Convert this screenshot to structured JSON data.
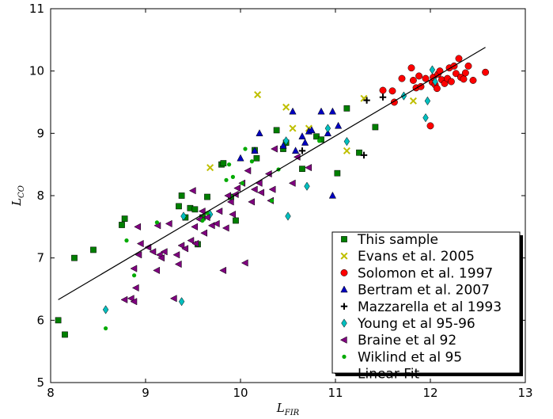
{
  "chart_data": {
    "type": "scatter",
    "xlabel": {
      "main": "L",
      "sub": "FIR"
    },
    "ylabel": {
      "main": "L",
      "sub": "CO"
    },
    "xlim": [
      8,
      13
    ],
    "ylim": [
      5,
      11
    ],
    "xticks": [
      8,
      9,
      10,
      11,
      12,
      13
    ],
    "yticks": [
      5,
      6,
      7,
      8,
      9,
      10,
      11
    ],
    "grid": false,
    "legend_position": "bottom-right",
    "series": [
      {
        "name": "This sample",
        "marker": "square",
        "color": "#007f00",
        "points": [
          [
            8.08,
            6.0
          ],
          [
            8.15,
            5.77
          ],
          [
            8.25,
            7.0
          ],
          [
            8.45,
            7.13
          ],
          [
            8.75,
            7.53
          ],
          [
            8.78,
            7.63
          ],
          [
            9.35,
            7.83
          ],
          [
            9.38,
            8.0
          ],
          [
            9.42,
            7.65
          ],
          [
            9.47,
            7.8
          ],
          [
            9.52,
            7.78
          ],
          [
            9.55,
            7.22
          ],
          [
            9.6,
            7.65
          ],
          [
            9.65,
            7.98
          ],
          [
            9.8,
            8.5
          ],
          [
            9.82,
            8.52
          ],
          [
            9.9,
            7.98
          ],
          [
            9.95,
            7.6
          ],
          [
            10.15,
            8.73
          ],
          [
            10.17,
            8.6
          ],
          [
            10.38,
            9.05
          ],
          [
            10.45,
            8.75
          ],
          [
            10.48,
            8.85
          ],
          [
            10.65,
            8.43
          ],
          [
            10.8,
            8.95
          ],
          [
            10.85,
            8.9
          ],
          [
            11.02,
            8.36
          ],
          [
            11.12,
            9.4
          ],
          [
            11.25,
            8.69
          ],
          [
            11.42,
            9.1
          ]
        ]
      },
      {
        "name": "Evans et al. 2005",
        "marker": "x",
        "color": "#bfbf00",
        "points": [
          [
            9.68,
            8.45
          ],
          [
            10.18,
            9.62
          ],
          [
            10.48,
            9.42
          ],
          [
            10.55,
            9.08
          ],
          [
            10.72,
            9.08
          ],
          [
            11.12,
            8.72
          ],
          [
            11.3,
            9.56
          ],
          [
            11.82,
            9.52
          ]
        ]
      },
      {
        "name": "Solomon et al. 1997",
        "marker": "circle",
        "color": "#ff0000",
        "points": [
          [
            11.5,
            9.69
          ],
          [
            11.6,
            9.68
          ],
          [
            11.62,
            9.5
          ],
          [
            11.7,
            9.88
          ],
          [
            11.8,
            10.05
          ],
          [
            11.82,
            9.85
          ],
          [
            11.85,
            9.73
          ],
          [
            11.88,
            9.92
          ],
          [
            11.9,
            9.75
          ],
          [
            11.95,
            9.88
          ],
          [
            12.0,
            9.12
          ],
          [
            12.02,
            9.82
          ],
          [
            12.03,
            9.9
          ],
          [
            12.05,
            9.78
          ],
          [
            12.07,
            9.72
          ],
          [
            12.08,
            9.95
          ],
          [
            12.1,
            10.0
          ],
          [
            12.12,
            9.86
          ],
          [
            12.15,
            9.8
          ],
          [
            12.18,
            9.88
          ],
          [
            12.2,
            10.05
          ],
          [
            12.22,
            9.83
          ],
          [
            12.25,
            10.08
          ],
          [
            12.27,
            9.96
          ],
          [
            12.3,
            10.2
          ],
          [
            12.32,
            9.9
          ],
          [
            12.35,
            9.87
          ],
          [
            12.37,
            9.97
          ],
          [
            12.4,
            10.08
          ],
          [
            12.45,
            9.85
          ],
          [
            12.58,
            9.98
          ]
        ]
      },
      {
        "name": "Bertram et al. 2007",
        "marker": "triangle-up",
        "color": "#0000bf",
        "points": [
          [
            10.0,
            8.6
          ],
          [
            10.15,
            8.72
          ],
          [
            10.2,
            9.0
          ],
          [
            10.45,
            8.8
          ],
          [
            10.55,
            9.35
          ],
          [
            10.58,
            8.72
          ],
          [
            10.65,
            8.95
          ],
          [
            10.68,
            8.85
          ],
          [
            10.72,
            9.03
          ],
          [
            10.75,
            9.05
          ],
          [
            10.85,
            9.35
          ],
          [
            10.92,
            9.0
          ],
          [
            10.97,
            9.35
          ],
          [
            10.97,
            8.0
          ],
          [
            11.03,
            9.12
          ]
        ]
      },
      {
        "name": "Mazzarella et al 1993",
        "marker": "plus",
        "color": "#000000",
        "points": [
          [
            10.65,
            8.72
          ],
          [
            11.3,
            8.65
          ],
          [
            11.33,
            9.53
          ],
          [
            11.5,
            9.58
          ]
        ]
      },
      {
        "name": "Young et al 95-96",
        "marker": "diamond",
        "color": "#00bfbf",
        "points": [
          [
            8.58,
            6.17
          ],
          [
            9.38,
            6.3
          ],
          [
            9.4,
            7.67
          ],
          [
            9.68,
            7.7
          ],
          [
            10.48,
            8.88
          ],
          [
            10.5,
            7.67
          ],
          [
            10.7,
            8.15
          ],
          [
            10.92,
            9.08
          ],
          [
            11.12,
            8.87
          ],
          [
            11.72,
            9.6
          ],
          [
            11.95,
            9.25
          ],
          [
            11.97,
            9.52
          ],
          [
            12.02,
            10.02
          ],
          [
            12.05,
            9.83
          ]
        ]
      },
      {
        "name": "Braine et al 92",
        "marker": "triangle-left",
        "color": "#7f007f",
        "points": [
          [
            8.78,
            6.33
          ],
          [
            8.85,
            6.35
          ],
          [
            8.88,
            6.83
          ],
          [
            8.88,
            6.3
          ],
          [
            8.9,
            6.52
          ],
          [
            8.92,
            7.5
          ],
          [
            8.93,
            7.05
          ],
          [
            8.95,
            7.23
          ],
          [
            9.03,
            7.17
          ],
          [
            9.08,
            7.1
          ],
          [
            9.12,
            6.8
          ],
          [
            9.13,
            7.52
          ],
          [
            9.15,
            7.05
          ],
          [
            9.17,
            7.0
          ],
          [
            9.2,
            7.1
          ],
          [
            9.25,
            7.55
          ],
          [
            9.3,
            6.35
          ],
          [
            9.33,
            7.05
          ],
          [
            9.35,
            6.9
          ],
          [
            9.38,
            7.2
          ],
          [
            9.42,
            7.15
          ],
          [
            9.48,
            7.28
          ],
          [
            9.5,
            8.08
          ],
          [
            9.52,
            7.5
          ],
          [
            9.53,
            7.23
          ],
          [
            9.57,
            7.62
          ],
          [
            9.6,
            7.75
          ],
          [
            9.62,
            7.4
          ],
          [
            9.65,
            7.65
          ],
          [
            9.7,
            7.52
          ],
          [
            9.75,
            7.55
          ],
          [
            9.78,
            7.75
          ],
          [
            9.82,
            6.8
          ],
          [
            9.85,
            7.48
          ],
          [
            9.87,
            8.0
          ],
          [
            9.9,
            7.9
          ],
          [
            9.92,
            7.7
          ],
          [
            9.95,
            8.02
          ],
          [
            9.97,
            8.12
          ],
          [
            10.02,
            8.2
          ],
          [
            10.05,
            6.92
          ],
          [
            10.08,
            8.4
          ],
          [
            10.12,
            7.9
          ],
          [
            10.15,
            8.1
          ],
          [
            10.2,
            8.2
          ],
          [
            10.22,
            8.05
          ],
          [
            10.3,
            8.35
          ],
          [
            10.32,
            7.92
          ],
          [
            10.34,
            8.1
          ],
          [
            10.36,
            8.75
          ],
          [
            10.55,
            8.2
          ],
          [
            10.6,
            8.62
          ],
          [
            10.72,
            8.45
          ]
        ]
      },
      {
        "name": "Wiklind et al 95",
        "marker": "dot",
        "color": "#00aa00",
        "points": [
          [
            8.58,
            5.87
          ],
          [
            8.8,
            7.28
          ],
          [
            8.88,
            6.72
          ],
          [
            9.12,
            7.57
          ],
          [
            9.6,
            7.6
          ],
          [
            9.65,
            7.72
          ],
          [
            9.85,
            8.25
          ],
          [
            9.88,
            8.5
          ],
          [
            9.92,
            8.3
          ],
          [
            10.02,
            8.2
          ],
          [
            10.05,
            8.75
          ],
          [
            10.12,
            8.55
          ],
          [
            10.33,
            7.92
          ],
          [
            10.4,
            8.42
          ],
          [
            10.83,
            8.88
          ]
        ]
      },
      {
        "name": "Linear Fit",
        "marker": "line",
        "color": "#000000",
        "points": [
          [
            8.08,
            6.33
          ],
          [
            12.58,
            10.38
          ]
        ]
      }
    ]
  }
}
